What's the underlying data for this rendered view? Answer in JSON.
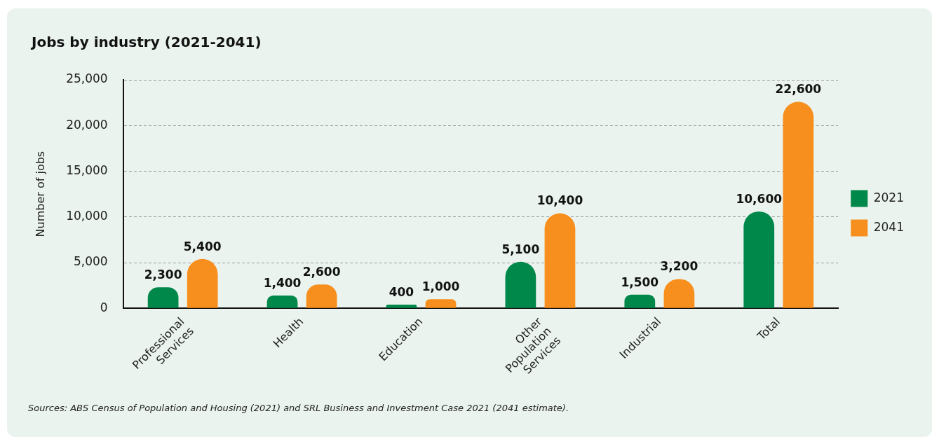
{
  "chart_data": {
    "type": "bar",
    "title": "Jobs by industry (2021-2041)",
    "ylabel": "Number of jobs",
    "categories": [
      "Professional Services",
      "Health",
      "Education",
      "Other Population Services",
      "Industrial",
      "Total"
    ],
    "series": [
      {
        "name": "2021",
        "color": "#00884a",
        "values": [
          2300,
          1400,
          400,
          5100,
          1500,
          10600
        ],
        "value_labels": [
          "2,300",
          "1,400",
          "400",
          "5,100",
          "1,500",
          "10,600"
        ]
      },
      {
        "name": "2041",
        "color": "#f78f1e",
        "values": [
          5400,
          2600,
          1000,
          10400,
          3200,
          22600
        ],
        "value_labels": [
          "5,400",
          "2,600",
          "1,000",
          "10,400",
          "3,200",
          "22,600"
        ]
      }
    ],
    "ylim": [
      0,
      25000
    ],
    "yticks": [
      {
        "value": 0,
        "label": "0"
      },
      {
        "value": 5000,
        "label": "5,000"
      },
      {
        "value": 10000,
        "label": "10,000"
      },
      {
        "value": 15000,
        "label": "15,000"
      },
      {
        "value": 20000,
        "label": "20,000"
      },
      {
        "value": 25000,
        "label": "25,000"
      }
    ],
    "grid": "y",
    "legend": "right",
    "annotations": [
      "Sources: ABS Census of Population and Housing (2021) and SRL Business and Investment Case 2021 (2041 estimate)."
    ]
  }
}
